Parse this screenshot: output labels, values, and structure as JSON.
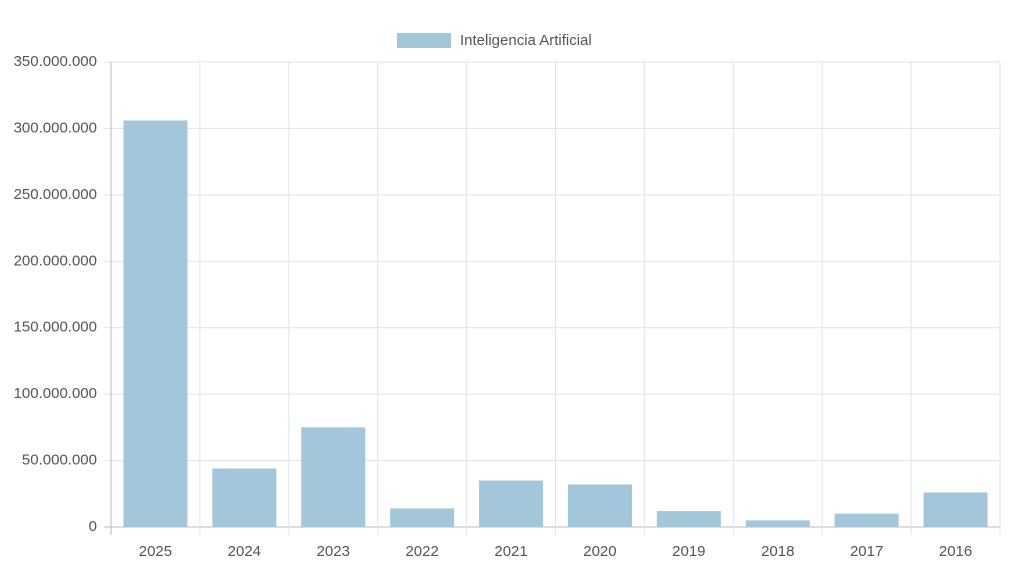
{
  "chart_data": {
    "type": "bar",
    "categories": [
      "2025",
      "2024",
      "2023",
      "2022",
      "2021",
      "2020",
      "2019",
      "2018",
      "2017",
      "2016"
    ],
    "series": [
      {
        "name": "Inteligencia Artificial",
        "color": "#a4c6da",
        "values": [
          306000000,
          44000000,
          75000000,
          14000000,
          35000000,
          32000000,
          12000000,
          5000000,
          10000000,
          26000000
        ]
      }
    ],
    "ylim": [
      0,
      350000000
    ],
    "yticks": [
      0,
      {
        "value": 50000000,
        "label": "50.000.000"
      },
      {
        "value": 100000000,
        "label": "100.000.000"
      },
      {
        "value": 150000000,
        "label": "150.000.000"
      },
      {
        "value": 200000000,
        "label": "200.000.000"
      },
      {
        "value": 250000000,
        "label": "250.000.000"
      },
      {
        "value": 300000000,
        "label": "300.000.000"
      },
      {
        "value": 350000000,
        "label": "350.000.000"
      }
    ],
    "grid": true,
    "legend": "top"
  }
}
